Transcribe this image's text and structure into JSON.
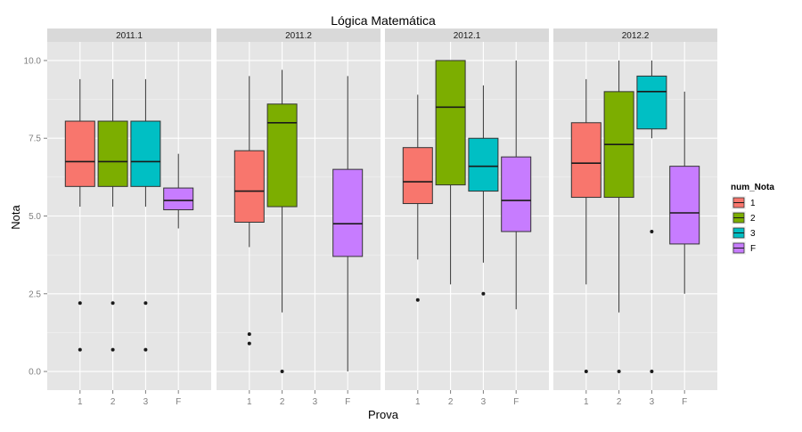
{
  "chart_data": {
    "type": "boxplot",
    "title": "Lógica Matemática",
    "xlabel": "Prova",
    "ylabel": "Nota",
    "categories": [
      "1",
      "2",
      "3",
      "F"
    ],
    "ylim": [
      -0.6,
      10.6
    ],
    "yticks": [
      0.0,
      2.5,
      5.0,
      7.5,
      10.0
    ],
    "ytick_labels": [
      "0.0",
      "2.5",
      "5.0",
      "7.5",
      "10.0"
    ],
    "grid": true,
    "legend": {
      "title": "num_Nota",
      "position": "right",
      "entries": [
        {
          "label": "1",
          "color": "#F8766D"
        },
        {
          "label": "2",
          "color": "#7CAE00"
        },
        {
          "label": "3",
          "color": "#00BFC4"
        },
        {
          "label": "F",
          "color": "#C77CFF"
        }
      ]
    },
    "panels": [
      {
        "name": "2011.1",
        "boxes": [
          {
            "category": "1",
            "min": 5.3,
            "q1": 5.95,
            "median": 6.75,
            "q3": 8.05,
            "max": 9.4,
            "outliers": [
              2.2,
              0.7
            ]
          },
          {
            "category": "2",
            "min": 5.3,
            "q1": 5.95,
            "median": 6.75,
            "q3": 8.05,
            "max": 9.4,
            "outliers": [
              2.2,
              0.7
            ]
          },
          {
            "category": "3",
            "min": 5.3,
            "q1": 5.95,
            "median": 6.75,
            "q3": 8.05,
            "max": 9.4,
            "outliers": [
              2.2,
              0.7
            ]
          },
          {
            "category": "F",
            "min": 4.6,
            "q1": 5.2,
            "median": 5.5,
            "q3": 5.9,
            "max": 7.0,
            "outliers": []
          }
        ]
      },
      {
        "name": "2011.2",
        "boxes": [
          {
            "category": "1",
            "min": 4.0,
            "q1": 4.8,
            "median": 5.8,
            "q3": 7.1,
            "max": 9.5,
            "outliers": [
              1.2,
              0.9
            ]
          },
          {
            "category": "2",
            "min": 1.9,
            "q1": 5.3,
            "median": 8.0,
            "q3": 8.6,
            "max": 9.7,
            "outliers": [
              0.0
            ]
          },
          {
            "category": "F",
            "min": 0.0,
            "q1": 3.7,
            "median": 4.75,
            "q3": 6.5,
            "max": 9.5,
            "outliers": []
          }
        ]
      },
      {
        "name": "2012.1",
        "boxes": [
          {
            "category": "1",
            "min": 3.6,
            "q1": 5.4,
            "median": 6.1,
            "q3": 7.2,
            "max": 8.9,
            "outliers": [
              2.3
            ]
          },
          {
            "category": "2",
            "min": 2.8,
            "q1": 6.0,
            "median": 8.5,
            "q3": 10.0,
            "max": 10.0,
            "outliers": []
          },
          {
            "category": "3",
            "min": 3.5,
            "q1": 5.8,
            "median": 6.6,
            "q3": 7.5,
            "max": 9.2,
            "outliers": [
              2.5
            ]
          },
          {
            "category": "F",
            "min": 2.0,
            "q1": 4.5,
            "median": 5.5,
            "q3": 6.9,
            "max": 10.0,
            "outliers": []
          }
        ]
      },
      {
        "name": "2012.2",
        "boxes": [
          {
            "category": "1",
            "min": 2.8,
            "q1": 5.6,
            "median": 6.7,
            "q3": 8.0,
            "max": 9.4,
            "outliers": [
              0.0
            ]
          },
          {
            "category": "2",
            "min": 1.9,
            "q1": 5.6,
            "median": 7.3,
            "q3": 9.0,
            "max": 10.0,
            "outliers": [
              0.0
            ]
          },
          {
            "category": "3",
            "min": 7.5,
            "q1": 7.8,
            "median": 9.0,
            "q3": 9.5,
            "max": 10.0,
            "outliers": [
              4.5,
              0.0
            ]
          },
          {
            "category": "F",
            "min": 2.5,
            "q1": 4.1,
            "median": 5.1,
            "q3": 6.6,
            "max": 9.0,
            "outliers": []
          }
        ]
      }
    ]
  }
}
